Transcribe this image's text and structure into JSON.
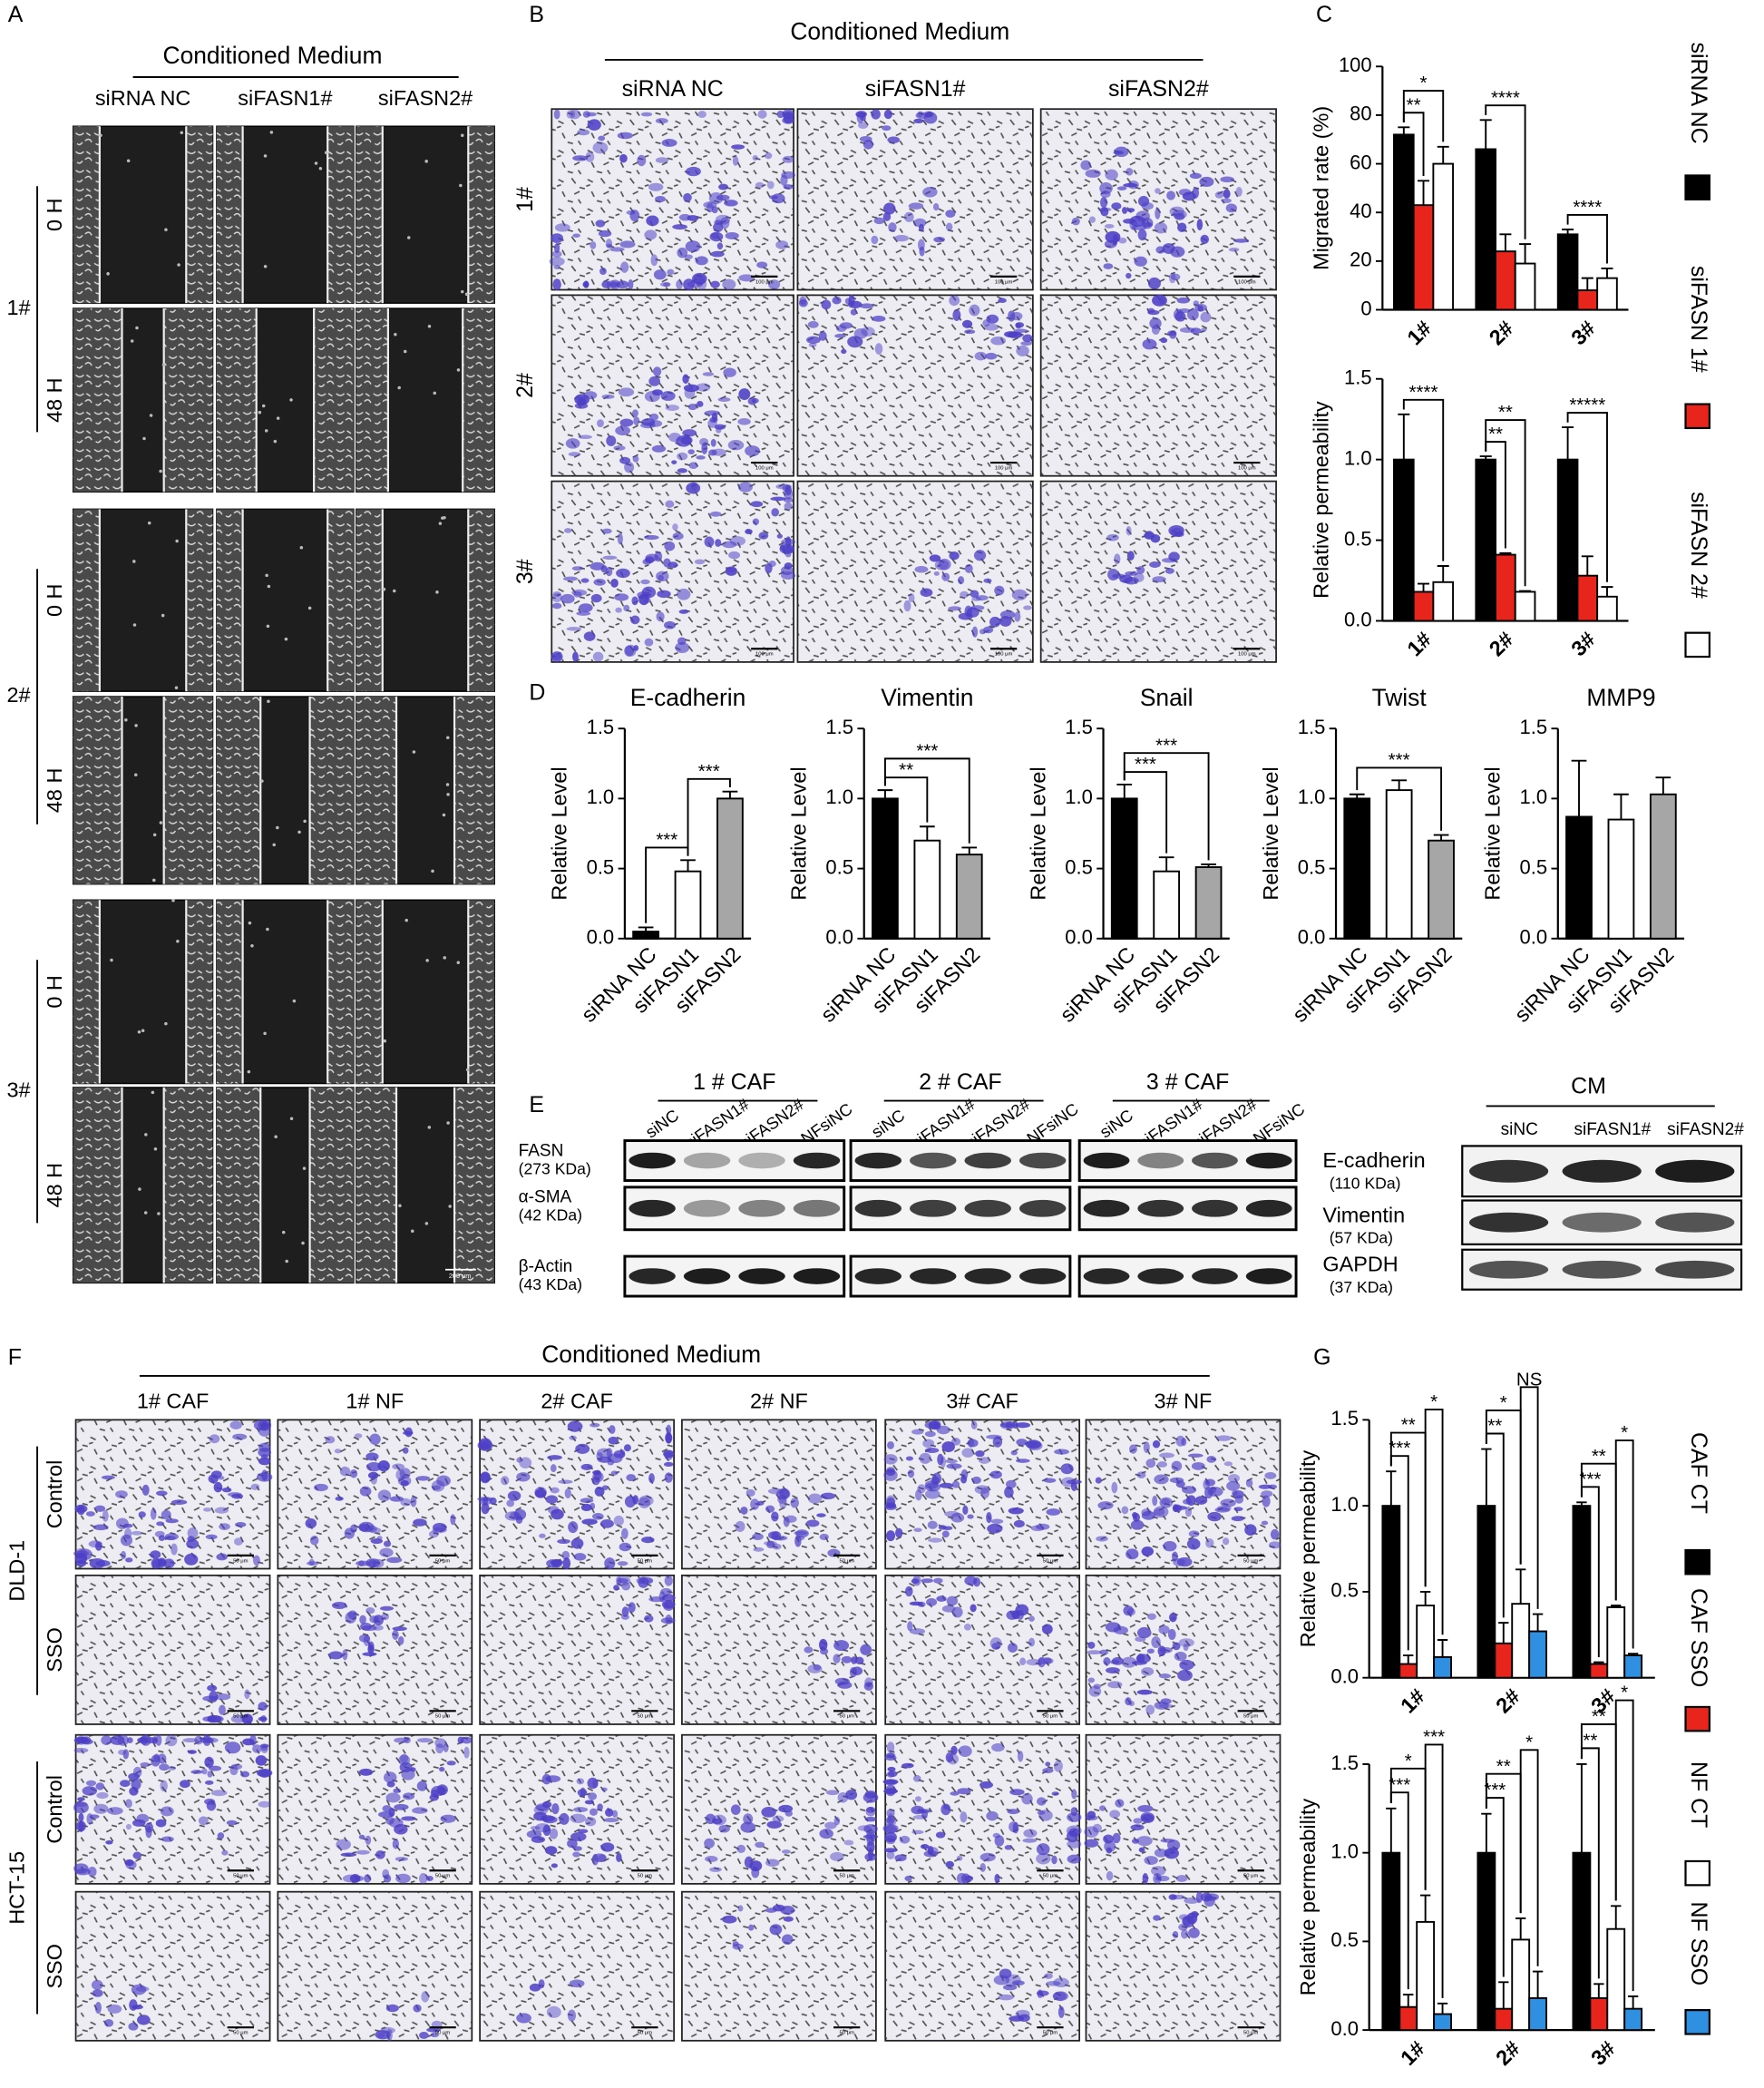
{
  "panel_labels": [
    "A",
    "B",
    "C",
    "D",
    "E",
    "F",
    "G"
  ],
  "panel_a": {
    "header": "Conditioned Medium",
    "columns": [
      "siRNA NC",
      "siFASN1#",
      "siFASN2#"
    ],
    "groups": [
      "1#",
      "2#",
      "3#"
    ],
    "times": [
      "0 H",
      "48 H"
    ],
    "scale_bar": "200 μm"
  },
  "panel_b": {
    "header": "Conditioned Medium",
    "columns": [
      "siRNA NC",
      "siFASN1#",
      "siFASN2#"
    ],
    "rows": [
      "1#",
      "2#",
      "3#"
    ],
    "scale_bar": "100 μm"
  },
  "panel_e": {
    "groups": [
      "1 # CAF",
      "2 # CAF",
      "3 # CAF"
    ],
    "lanes": [
      [
        "siNC",
        "siFASN1#",
        "siFASN2#",
        "NFsiNC"
      ],
      [
        "siNC",
        "siFASN1#",
        "siFASN2#",
        "NFsiNC"
      ],
      [
        "siNC",
        "siFASN1#",
        "siFASN2#",
        "NFsiNC"
      ]
    ],
    "proteins": [
      {
        "name": "FASN",
        "size": "(273 KDa)"
      },
      {
        "name": "α-SMA",
        "size": "(42 KDa)"
      },
      {
        "name": "β-Actin",
        "size": "(43 KDa)"
      }
    ],
    "cm": {
      "header": "CM",
      "lanes": [
        "siNC",
        "siFASN1#",
        "siFASN2#"
      ],
      "proteins": [
        {
          "name": "E-cadherin",
          "size": "(110 KDa)"
        },
        {
          "name": "Vimentin",
          "size": "(57 KDa)"
        },
        {
          "name": "GAPDH",
          "size": "(37 KDa)"
        }
      ]
    }
  },
  "panel_f": {
    "header": "Conditioned Medium",
    "columns": [
      "1# CAF",
      "1# NF",
      "2# CAF",
      "2# NF",
      "3# CAF",
      "3# NF"
    ],
    "cell_lines": [
      "DLD-1",
      "HCT-15"
    ],
    "conditions": [
      "Control",
      "SSO"
    ],
    "scale_bar": "50 μm"
  },
  "chart_data": [
    {
      "type": "bar",
      "y_label": "Migrated rate (%)",
      "categories": [
        "1#",
        "2#",
        "3#"
      ],
      "ylim": [
        0,
        100
      ],
      "yticks": [
        0,
        20,
        40,
        60,
        80,
        100
      ],
      "legend": "right",
      "series": [
        {
          "name": "siRNA NC",
          "color": "#000000",
          "values": [
            72,
            66,
            31
          ],
          "errors": [
            3,
            12,
            2
          ]
        },
        {
          "name": "siFASN 1#",
          "color": "#e8251c",
          "values": [
            43,
            24,
            8
          ],
          "errors": [
            10,
            7,
            5
          ]
        },
        {
          "name": "siFASN 2#",
          "color": "#ffffff",
          "values": [
            60,
            19,
            13
          ],
          "errors": [
            7,
            8,
            4
          ]
        }
      ],
      "annotations": [
        {
          "text": "**",
          "category": 0,
          "from": 0,
          "to": 1
        },
        {
          "text": "*",
          "category": 0,
          "from": 0,
          "to": 2
        },
        {
          "text": "****",
          "category": 1,
          "from": 0,
          "to": 2
        },
        {
          "text": "****",
          "category": 2,
          "from": 0,
          "to": 2
        }
      ]
    },
    {
      "type": "bar",
      "y_label": "Relative permeability",
      "categories": [
        "1#",
        "2#",
        "3#"
      ],
      "ylim": [
        0,
        1.5
      ],
      "yticks": [
        {
          "value": 0,
          "label": "0.0"
        },
        {
          "value": 0.5,
          "label": "0.5"
        },
        {
          "value": 1,
          "label": "1.0"
        },
        {
          "value": 1.5,
          "label": "1.5"
        }
      ],
      "series": [
        {
          "color": "#000000",
          "values": [
            1.0,
            1.0,
            1.0
          ],
          "errors": [
            0.28,
            0.02,
            0.2
          ]
        },
        {
          "color": "#e8251c",
          "values": [
            0.18,
            0.41,
            0.28
          ],
          "errors": [
            0.05,
            0.01,
            0.12
          ]
        },
        {
          "color": "#ffffff",
          "values": [
            0.24,
            0.18,
            0.15
          ],
          "errors": [
            0.1,
            0.005,
            0.06
          ]
        }
      ],
      "annotations": [
        {
          "text": "****",
          "category": 0,
          "from": 0,
          "to": 2
        },
        {
          "text": "**",
          "category": 1,
          "from": 0,
          "to": 1
        },
        {
          "text": "**",
          "category": 1,
          "from": 0,
          "to": 2
        },
        {
          "text": "*****",
          "category": 2,
          "from": 0,
          "to": 2
        }
      ]
    },
    {
      "type": "bar",
      "title": "E-cadherin",
      "y_label": "Relative Level",
      "categories": [
        "siRNA NC",
        "siFASN1",
        "siFASN2"
      ],
      "values": [
        0.05,
        0.48,
        1.0
      ],
      "errors": [
        0.03,
        0.08,
        0.05
      ],
      "colors": [
        "#000000",
        "#ffffff",
        "#a6a6a6"
      ],
      "ylim": [
        0,
        1.5
      ],
      "yticks": [
        {
          "value": 0,
          "label": "0.0"
        },
        {
          "value": 0.5,
          "label": "0.5"
        },
        {
          "value": 1,
          "label": "1.0"
        },
        {
          "value": 1.5,
          "label": "1.5"
        }
      ],
      "annotations": [
        {
          "text": "***",
          "from": 0,
          "to": 1
        },
        {
          "text": "***",
          "from": 1,
          "to": 2
        }
      ]
    },
    {
      "type": "bar",
      "title": "Vimentin",
      "y_label": "Relative Level",
      "categories": [
        "siRNA NC",
        "siFASN1",
        "siFASN2"
      ],
      "values": [
        1.0,
        0.7,
        0.6
      ],
      "errors": [
        0.06,
        0.1,
        0.05
      ],
      "colors": [
        "#000000",
        "#ffffff",
        "#a6a6a6"
      ],
      "ylim": [
        0,
        1.5
      ],
      "yticks": [
        {
          "value": 0,
          "label": "0.0"
        },
        {
          "value": 0.5,
          "label": "0.5"
        },
        {
          "value": 1,
          "label": "1.0"
        },
        {
          "value": 1.5,
          "label": "1.5"
        }
      ],
      "annotations": [
        {
          "text": "**",
          "from": 0,
          "to": 1
        },
        {
          "text": "***",
          "from": 0,
          "to": 2
        }
      ]
    },
    {
      "type": "bar",
      "title": "Snail",
      "y_label": "Relative Level",
      "categories": [
        "siRNA NC",
        "siFASN1",
        "siFASN2"
      ],
      "values": [
        1.0,
        0.48,
        0.51
      ],
      "errors": [
        0.1,
        0.1,
        0.02
      ],
      "colors": [
        "#000000",
        "#ffffff",
        "#a6a6a6"
      ],
      "ylim": [
        0,
        1.5
      ],
      "yticks": [
        {
          "value": 0,
          "label": "0.0"
        },
        {
          "value": 0.5,
          "label": "0.5"
        },
        {
          "value": 1,
          "label": "1.0"
        },
        {
          "value": 1.5,
          "label": "1.5"
        }
      ],
      "annotations": [
        {
          "text": "***",
          "from": 0,
          "to": 1
        },
        {
          "text": "***",
          "from": 0,
          "to": 2
        }
      ]
    },
    {
      "type": "bar",
      "title": "Twist",
      "y_label": "Relative Level",
      "categories": [
        "siRNA NC",
        "siFASN1",
        "siFASN2"
      ],
      "values": [
        1.0,
        1.06,
        0.7
      ],
      "errors": [
        0.03,
        0.07,
        0.04
      ],
      "colors": [
        "#000000",
        "#ffffff",
        "#a6a6a6"
      ],
      "ylim": [
        0,
        1.5
      ],
      "yticks": [
        {
          "value": 0,
          "label": "0.0"
        },
        {
          "value": 0.5,
          "label": "0.5"
        },
        {
          "value": 1,
          "label": "1.0"
        },
        {
          "value": 1.5,
          "label": "1.5"
        }
      ],
      "annotations": [
        {
          "text": "***",
          "from": 0,
          "to": 2
        }
      ]
    },
    {
      "type": "bar",
      "title": "MMP9",
      "y_label": "Relative Level",
      "categories": [
        "siRNA NC",
        "siFASN1",
        "siFASN2"
      ],
      "values": [
        0.87,
        0.85,
        1.03
      ],
      "errors": [
        0.4,
        0.18,
        0.12
      ],
      "colors": [
        "#000000",
        "#ffffff",
        "#a6a6a6"
      ],
      "ylim": [
        0,
        1.5
      ],
      "yticks": [
        {
          "value": 0,
          "label": "0.0"
        },
        {
          "value": 0.5,
          "label": "0.5"
        },
        {
          "value": 1,
          "label": "1.0"
        },
        {
          "value": 1.5,
          "label": "1.5"
        }
      ],
      "annotations": []
    },
    {
      "type": "bar",
      "y_label": "Relative permeability",
      "categories": [
        "1#",
        "2#",
        "3#"
      ],
      "ylim": [
        0,
        1.5
      ],
      "legend": "right",
      "yticks": [
        {
          "value": 0,
          "label": "0.0"
        },
        {
          "value": 0.5,
          "label": "0.5"
        },
        {
          "value": 1,
          "label": "1.0"
        },
        {
          "value": 1.5,
          "label": "1.5"
        }
      ],
      "series": [
        {
          "name": "CAF CT",
          "color": "#000000",
          "values": [
            1.0,
            1.0,
            1.0
          ],
          "errors": [
            0.2,
            0.33,
            0.02
          ]
        },
        {
          "name": "CAF SSO",
          "color": "#e8251c",
          "values": [
            0.08,
            0.2,
            0.08
          ],
          "errors": [
            0.05,
            0.12,
            0.01
          ]
        },
        {
          "name": "NF CT",
          "color": "#ffffff",
          "values": [
            0.42,
            0.43,
            0.41
          ],
          "errors": [
            0.08,
            0.2,
            0.01
          ]
        },
        {
          "name": "NF SSO",
          "color": "#2f8fe0",
          "values": [
            0.12,
            0.27,
            0.13
          ],
          "errors": [
            0.1,
            0.1,
            0.01
          ]
        }
      ],
      "annotations": [
        {
          "text": "***",
          "category": 0,
          "from": 0,
          "to": 1
        },
        {
          "text": "**",
          "category": 0,
          "from": 0,
          "to": 2
        },
        {
          "text": "*",
          "category": 0,
          "from": 2,
          "to": 3
        },
        {
          "text": "**",
          "category": 1,
          "from": 0,
          "to": 1
        },
        {
          "text": "*",
          "category": 1,
          "from": 0,
          "to": 2
        },
        {
          "text": "NS",
          "category": 1,
          "from": 2,
          "to": 3
        },
        {
          "text": "***",
          "category": 2,
          "from": 0,
          "to": 1
        },
        {
          "text": "**",
          "category": 2,
          "from": 0,
          "to": 2
        },
        {
          "text": "*",
          "category": 2,
          "from": 2,
          "to": 3
        }
      ]
    },
    {
      "type": "bar",
      "y_label": "Relative permeability",
      "categories": [
        "1#",
        "2#",
        "3#"
      ],
      "ylim": [
        0,
        1.5
      ],
      "yticks": [
        {
          "value": 0,
          "label": "0.0"
        },
        {
          "value": 0.5,
          "label": "0.5"
        },
        {
          "value": 1,
          "label": "1.0"
        },
        {
          "value": 1.5,
          "label": "1.5"
        }
      ],
      "series": [
        {
          "color": "#000000",
          "values": [
            1.0,
            1.0,
            1.0
          ],
          "errors": [
            0.25,
            0.22,
            0.5
          ]
        },
        {
          "color": "#e8251c",
          "values": [
            0.13,
            0.12,
            0.18
          ],
          "errors": [
            0.07,
            0.15,
            0.08
          ]
        },
        {
          "color": "#ffffff",
          "values": [
            0.61,
            0.51,
            0.57
          ],
          "errors": [
            0.15,
            0.12,
            0.13
          ]
        },
        {
          "color": "#2f8fe0",
          "values": [
            0.09,
            0.18,
            0.12
          ],
          "errors": [
            0.06,
            0.15,
            0.07
          ]
        }
      ],
      "annotations": [
        {
          "text": "***",
          "category": 0,
          "from": 0,
          "to": 1
        },
        {
          "text": "*",
          "category": 0,
          "from": 0,
          "to": 2
        },
        {
          "text": "***",
          "category": 0,
          "from": 2,
          "to": 3
        },
        {
          "text": "***",
          "category": 1,
          "from": 0,
          "to": 1
        },
        {
          "text": "**",
          "category": 1,
          "from": 0,
          "to": 2
        },
        {
          "text": "*",
          "category": 1,
          "from": 2,
          "to": 3
        },
        {
          "text": "**",
          "category": 2,
          "from": 0,
          "to": 1
        },
        {
          "text": "**",
          "category": 2,
          "from": 0,
          "to": 2
        },
        {
          "text": "*",
          "category": 2,
          "from": 2,
          "to": 3
        }
      ]
    }
  ]
}
